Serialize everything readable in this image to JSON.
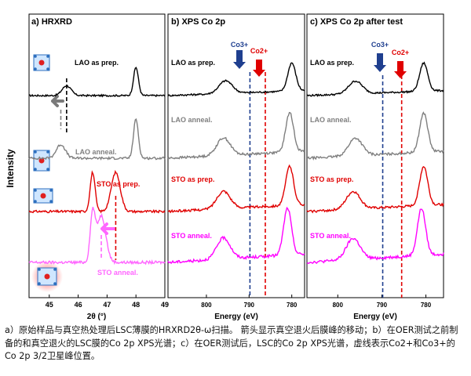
{
  "figure": {
    "y_axis_label": "Intensity",
    "caption": "a）原始样品与真空热处理后LSC薄膜的HRXRD2θ-ω扫描。 箭头显示真空退火后膜峰的移动；b）在OER测试之前制备的和真空退火的LSC膜的Co 2p XPS光谱；c）在OER测试后，LSC的Co 2p XPS光谱，虚线表示Co2+和Co3+的Co 2p 3/2卫星峰位置。"
  },
  "chart_data": [
    {
      "type": "line",
      "panel": "a",
      "title": "a) HRXRD",
      "xlabel": "2θ (°)",
      "ylabel": "Intensity",
      "xlim": [
        44.3,
        49
      ],
      "xticks": [
        45,
        46,
        47,
        48,
        49
      ],
      "series": [
        {
          "name": "LAO as prep.",
          "color": "#000000",
          "peaks": [
            {
              "x": 45.6,
              "note": "film peak"
            },
            {
              "x": 48.0,
              "note": "substrate peak"
            }
          ]
        },
        {
          "name": "LAO anneal.",
          "color": "#7f7f7f",
          "peaks": [
            {
              "x": 45.4,
              "note": "film peak shifted to lower angle"
            },
            {
              "x": 48.0,
              "note": "substrate peak"
            }
          ]
        },
        {
          "name": "STO as prep.",
          "color": "#e00000",
          "peaks": [
            {
              "x": 46.5,
              "note": "substrate peak"
            },
            {
              "x": 47.3,
              "note": "film peak"
            }
          ]
        },
        {
          "name": "STO anneal.",
          "color": "#ff66ff",
          "peaks": [
            {
              "x": 46.5,
              "note": "substrate peak"
            },
            {
              "x": 46.8,
              "note": "film peak shifted"
            }
          ]
        }
      ],
      "annotations": [
        "left arrow indicates film peak shift after vacuum annealing"
      ]
    },
    {
      "type": "line",
      "panel": "b",
      "title": "b) XPS Co 2p",
      "xlabel": "Energy (eV)",
      "xlim": [
        809,
        777
      ],
      "xticks": [
        800,
        790,
        780
      ],
      "reference_lines": [
        {
          "label": "Co3+",
          "x": 789.8,
          "color": "#1f3f8f"
        },
        {
          "label": "Co2+",
          "x": 786.2,
          "color": "#e00000"
        }
      ],
      "series": [
        {
          "name": "LAO as prep.",
          "color": "#000000",
          "peaks": [
            {
              "x": 795.5
            },
            {
              "x": 780.0
            }
          ]
        },
        {
          "name": "LAO anneal.",
          "color": "#7f7f7f",
          "peaks": [
            {
              "x": 796.0
            },
            {
              "x": 780.5
            }
          ]
        },
        {
          "name": "STO as prep.",
          "color": "#e00000",
          "peaks": [
            {
              "x": 796.0
            },
            {
              "x": 780.5
            }
          ]
        },
        {
          "name": "STO anneal.",
          "color": "#ff00ff",
          "peaks": [
            {
              "x": 796.0
            },
            {
              "x": 781.0
            }
          ]
        }
      ]
    },
    {
      "type": "line",
      "panel": "c",
      "title": "c) XPS Co 2p after test",
      "xlabel": "Energy (eV)",
      "xlim": [
        807,
        776
      ],
      "xticks": [
        800,
        790,
        780
      ],
      "reference_lines": [
        {
          "label": "Co3+",
          "x": 789.8,
          "color": "#1f3f8f"
        },
        {
          "label": "Co2+",
          "x": 785.5,
          "color": "#e00000"
        }
      ],
      "series": [
        {
          "name": "LAO as prep.",
          "color": "#000000",
          "peaks": [
            {
              "x": 796.0
            },
            {
              "x": 780.5
            }
          ]
        },
        {
          "name": "LAO anneal.",
          "color": "#7f7f7f",
          "peaks": [
            {
              "x": 796.0
            },
            {
              "x": 780.5
            }
          ]
        },
        {
          "name": "STO as prep.",
          "color": "#e00000",
          "peaks": [
            {
              "x": 796.5
            },
            {
              "x": 780.5
            }
          ]
        },
        {
          "name": "STO anneal.",
          "color": "#ff00ff",
          "peaks": [
            {
              "x": 796.5
            },
            {
              "x": 781.0
            }
          ]
        }
      ]
    }
  ]
}
